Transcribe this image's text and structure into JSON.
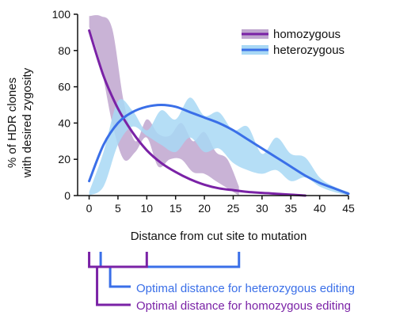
{
  "chart_data": {
    "type": "line",
    "title": "",
    "xlabel": "Distance from cut site to mutation",
    "ylabel_line1": "% of HDR clones",
    "ylabel_line2": "with desired zygosity",
    "xlim": [
      -2,
      45
    ],
    "ylim": [
      0,
      100
    ],
    "xticks": [
      0,
      5,
      10,
      15,
      20,
      25,
      30,
      35,
      40,
      45
    ],
    "yticks": [
      0,
      20,
      40,
      60,
      80,
      100
    ],
    "legend_position": "top-right",
    "series": [
      {
        "name": "homozygous",
        "color": "#7a22a6",
        "band_color": "#bfa6cf",
        "fit": {
          "x": [
            0,
            2.5,
            5,
            7.5,
            10,
            12.5,
            15,
            17.5,
            20,
            22.5,
            25,
            27.5,
            30,
            32.5,
            35,
            37.5
          ],
          "y": [
            91,
            66,
            48,
            35,
            25,
            18,
            13,
            9,
            6,
            4,
            3,
            2,
            1.5,
            1,
            0.5,
            0
          ]
        },
        "band": {
          "x": [
            0,
            2,
            4,
            6,
            8,
            10,
            12,
            14,
            16,
            18,
            20,
            22,
            24,
            26
          ],
          "upper": [
            99,
            99,
            92,
            52,
            30,
            42,
            34,
            33,
            40,
            30,
            35,
            24,
            20,
            5
          ],
          "lower": [
            93,
            72,
            40,
            20,
            24,
            32,
            16,
            20,
            20,
            13,
            12,
            8,
            4,
            0
          ]
        }
      },
      {
        "name": "heterozygous",
        "color": "#3a6fe8",
        "band_color": "#a8d8f5",
        "fit": {
          "x": [
            0,
            2.5,
            5,
            7.5,
            10,
            12.5,
            15,
            17.5,
            20,
            22.5,
            25,
            27.5,
            30,
            32.5,
            35,
            37.5,
            40,
            42.5,
            45
          ],
          "y": [
            8,
            28,
            40,
            46,
            49,
            50,
            49,
            46,
            43,
            40,
            36,
            31,
            26,
            21,
            16,
            11,
            7,
            4,
            1
          ]
        },
        "band": {
          "x": [
            0,
            2.5,
            5,
            7.5,
            10,
            12.5,
            15,
            17.5,
            20,
            22.5,
            25,
            27.5,
            30,
            32.5,
            35,
            37.5,
            40,
            42.5,
            45
          ],
          "upper": [
            2,
            24,
            52,
            47,
            36,
            47,
            42,
            54,
            44,
            46,
            36,
            38,
            23,
            32,
            23,
            21,
            10,
            5,
            2
          ],
          "lower": [
            0,
            5,
            28,
            38,
            33,
            28,
            24,
            32,
            24,
            26,
            18,
            14,
            12,
            14,
            8,
            10,
            5,
            2,
            0
          ]
        }
      }
    ],
    "ranges": [
      {
        "name": "heterozygous",
        "color": "#3a6fe8",
        "from": 2,
        "to": 26,
        "label": "Optimal distance for heterozygous editing"
      },
      {
        "name": "homozygous",
        "color": "#7a22a6",
        "from": 0,
        "to": 10,
        "label": "Optimal distance for homozygous editing"
      }
    ]
  }
}
